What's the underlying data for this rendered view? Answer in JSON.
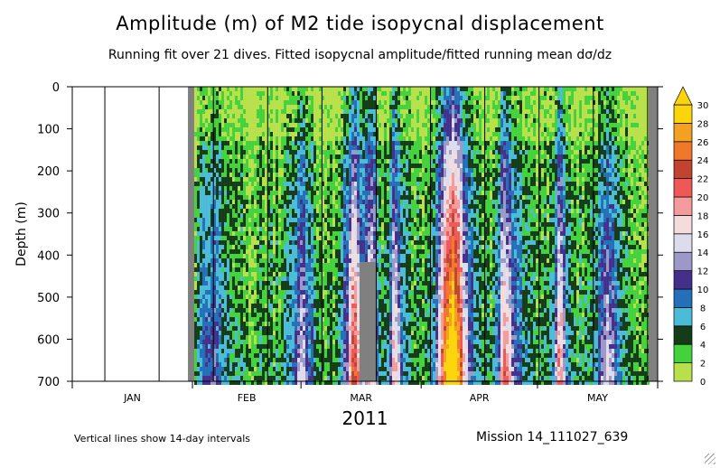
{
  "chart_data": {
    "type": "heatmap",
    "title": "Amplitude (m) of M2 tide isopycnal displacement",
    "subtitle": "Running fit over 21 dives. Fitted isopycnal amplitude/fitted running mean dσ/dz",
    "ylabel": "Depth (m)",
    "xlabel": "2011",
    "ylim": [
      700,
      0
    ],
    "y_ticks": [
      "0",
      "100",
      "200",
      "300",
      "400",
      "500",
      "600",
      "700"
    ],
    "x_range": [
      "2011-01-01",
      "2011-06-01"
    ],
    "x_month_labels": [
      "JAN",
      "FEB",
      "MAR",
      "APR",
      "MAY"
    ],
    "data_start": "2011-02-01",
    "vertical_line_interval_days": 14,
    "colorbar": {
      "levels": [
        "0",
        "2",
        "4",
        "6",
        "8",
        "10",
        "12",
        "14",
        "16",
        "18",
        "20",
        "22",
        "24",
        "26",
        "28",
        "30"
      ],
      "colors": [
        "#b8e04a",
        "#44d23c",
        "#143c18",
        "#4bbcd8",
        "#2470b8",
        "#44308a",
        "#9c98c8",
        "#dcdcec",
        "#f4dcdc",
        "#f49c9c",
        "#f05858",
        "#c04430",
        "#f07828",
        "#f4a020",
        "#fcd40c"
      ],
      "over_color": "#fcd40c",
      "extend": "max"
    },
    "missing_color": "#808080"
  },
  "footer": {
    "note": "Vertical lines show 14-day intervals",
    "mission": "Mission 14_111027_639"
  }
}
